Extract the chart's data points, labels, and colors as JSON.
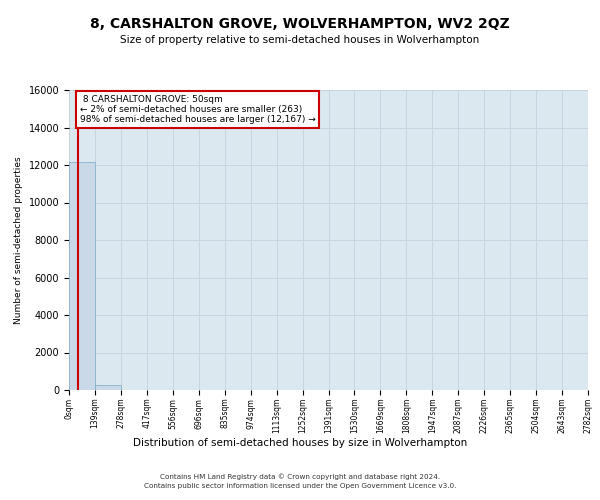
{
  "title": "8, CARSHALTON GROVE, WOLVERHAMPTON, WV2 2QZ",
  "subtitle": "Size of property relative to semi-detached houses in Wolverhampton",
  "xlabel": "Distribution of semi-detached houses by size in Wolverhampton",
  "ylabel": "Number of semi-detached properties",
  "property_size": 50,
  "property_label": "8 CARSHALTON GROVE: 50sqm",
  "pct_smaller": 2,
  "n_smaller": 263,
  "pct_larger": 98,
  "n_larger": 12167,
  "bin_width": 139,
  "bin_edges": [
    0,
    139,
    278,
    417,
    556,
    696,
    835,
    974,
    1113,
    1252,
    1391,
    1530,
    1669,
    1808,
    1947,
    2087,
    2226,
    2365,
    2504,
    2643,
    2782
  ],
  "bar_values": [
    12167,
    263,
    0,
    0,
    0,
    0,
    0,
    0,
    0,
    0,
    0,
    0,
    0,
    0,
    0,
    0,
    0,
    0,
    0,
    0
  ],
  "bar_color": "#c9d9e8",
  "bar_edge_color": "#7aaac8",
  "grid_color": "#c8d4e0",
  "background_color": "#dce8f0",
  "red_line_color": "#cc0000",
  "annotation_box_color": "#cc0000",
  "ylim": [
    0,
    16000
  ],
  "yticks": [
    0,
    2000,
    4000,
    6000,
    8000,
    10000,
    12000,
    14000,
    16000
  ],
  "footer_line1": "Contains HM Land Registry data © Crown copyright and database right 2024.",
  "footer_line2": "Contains public sector information licensed under the Open Government Licence v3.0."
}
